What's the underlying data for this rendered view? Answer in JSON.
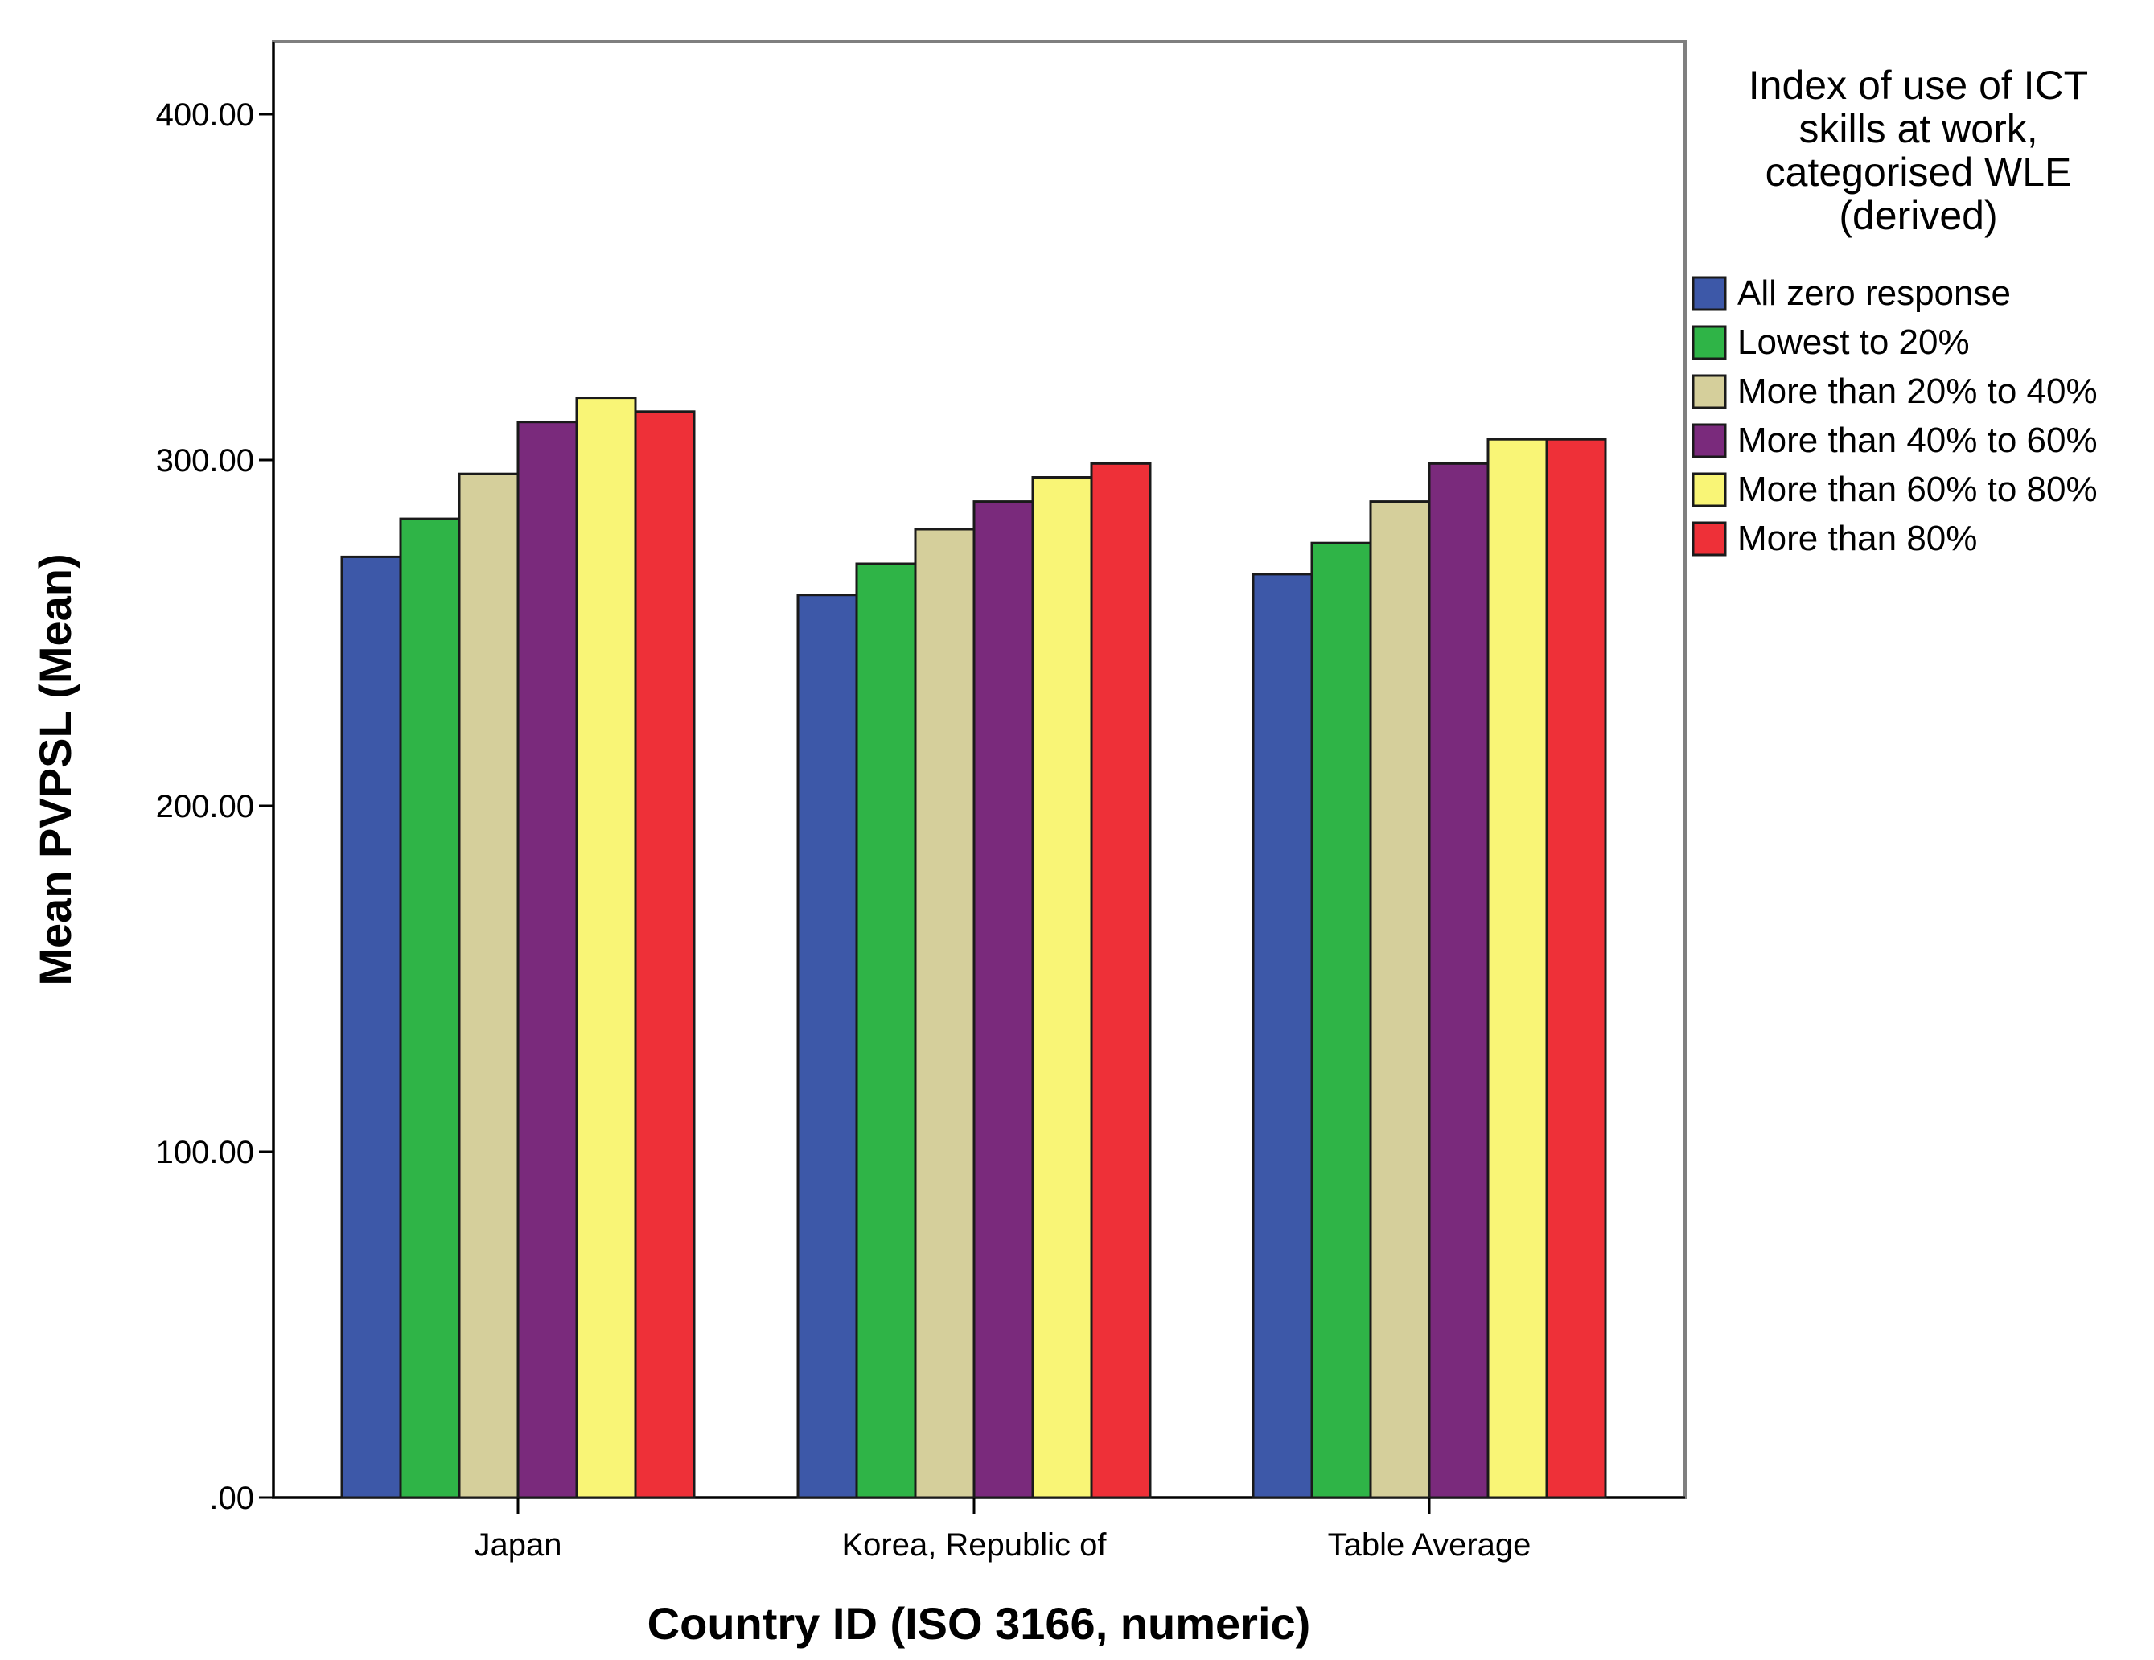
{
  "chart_data": {
    "type": "bar",
    "title": "",
    "xlabel": "Country ID (ISO 3166, numeric)",
    "ylabel": "Mean PVPSL (Mean)",
    "ylim": [
      0,
      420
    ],
    "yticks": [
      0,
      100,
      200,
      300,
      400
    ],
    "ytick_labels": [
      ".00",
      "100.00",
      "200.00",
      "300.00",
      "400.00"
    ],
    "categories": [
      "Japan",
      "Korea, Republic of",
      "Table Average"
    ],
    "legend_title": [
      "Index of use of ICT",
      "skills at work,",
      "categorised WLE",
      "(derived)"
    ],
    "legend_position": "right",
    "series": [
      {
        "name": "All zero response",
        "color": "#3d58a8",
        "values": [
          272,
          261,
          267
        ]
      },
      {
        "name": "Lowest to 20%",
        "color": "#2fb447",
        "values": [
          283,
          270,
          276
        ]
      },
      {
        "name": "More than 20% to 40%",
        "color": "#d5cf9b",
        "values": [
          296,
          280,
          288
        ]
      },
      {
        "name": "More than 40% to 60%",
        "color": "#7a2a7c",
        "values": [
          311,
          288,
          299
        ]
      },
      {
        "name": "More than 60% to 80%",
        "color": "#f9f576",
        "values": [
          318,
          295,
          306
        ]
      },
      {
        "name": "More than 80%",
        "color": "#ee3038",
        "values": [
          314,
          299,
          306
        ]
      }
    ]
  }
}
